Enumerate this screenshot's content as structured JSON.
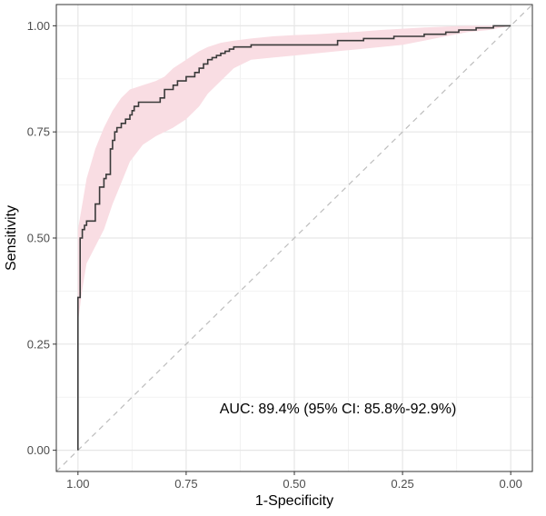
{
  "chart_data": {
    "type": "line",
    "title": "",
    "xlabel": "1-Specificity",
    "ylabel": "Sensitivity",
    "x_reversed": true,
    "xlim": [
      1.05,
      -0.05
    ],
    "ylim": [
      -0.05,
      1.05
    ],
    "x_ticks": [
      1.0,
      0.75,
      0.5,
      0.25,
      0.0
    ],
    "x_tick_labels": [
      "1.00",
      "0.75",
      "0.50",
      "0.25",
      "0.00"
    ],
    "y_ticks": [
      0.0,
      0.25,
      0.5,
      0.75,
      1.0
    ],
    "y_tick_labels": [
      "0.00",
      "0.25",
      "0.50",
      "0.75",
      "1.00"
    ],
    "grid": true,
    "annotation": "AUC: 89.4% (95% CI: 85.8%-92.9%)",
    "colors": {
      "line": "#3a3a3a",
      "band": "#f9dde3",
      "diagonal": "#bdbdbd",
      "grid_major": "#e6e6e6",
      "grid_minor": "#f2f2f2",
      "border": "#333333"
    },
    "roc_curve": {
      "x": [
        1.0,
        1.0,
        0.995,
        0.995,
        0.99,
        0.99,
        0.985,
        0.985,
        0.98,
        0.98,
        0.96,
        0.96,
        0.95,
        0.95,
        0.94,
        0.94,
        0.935,
        0.935,
        0.925,
        0.925,
        0.92,
        0.92,
        0.915,
        0.915,
        0.91,
        0.91,
        0.9,
        0.9,
        0.89,
        0.89,
        0.88,
        0.88,
        0.875,
        0.875,
        0.87,
        0.87,
        0.86,
        0.86,
        0.84,
        0.84,
        0.81,
        0.81,
        0.8,
        0.8,
        0.78,
        0.78,
        0.77,
        0.77,
        0.75,
        0.75,
        0.73,
        0.73,
        0.72,
        0.72,
        0.71,
        0.71,
        0.7,
        0.7,
        0.69,
        0.69,
        0.68,
        0.68,
        0.67,
        0.67,
        0.66,
        0.66,
        0.65,
        0.65,
        0.64,
        0.64,
        0.62,
        0.62,
        0.6,
        0.6,
        0.4,
        0.4,
        0.34,
        0.34,
        0.27,
        0.27,
        0.2,
        0.2,
        0.15,
        0.15,
        0.12,
        0.12,
        0.08,
        0.08,
        0.04,
        0.04,
        0.0
      ],
      "y": [
        0.0,
        0.36,
        0.36,
        0.5,
        0.5,
        0.52,
        0.52,
        0.53,
        0.53,
        0.54,
        0.54,
        0.58,
        0.58,
        0.62,
        0.62,
        0.64,
        0.64,
        0.65,
        0.65,
        0.71,
        0.71,
        0.73,
        0.73,
        0.75,
        0.75,
        0.76,
        0.76,
        0.77,
        0.77,
        0.78,
        0.78,
        0.79,
        0.79,
        0.8,
        0.8,
        0.81,
        0.81,
        0.82,
        0.82,
        0.82,
        0.82,
        0.83,
        0.83,
        0.85,
        0.85,
        0.86,
        0.86,
        0.87,
        0.87,
        0.88,
        0.88,
        0.89,
        0.89,
        0.9,
        0.9,
        0.91,
        0.91,
        0.92,
        0.92,
        0.925,
        0.925,
        0.93,
        0.93,
        0.935,
        0.935,
        0.94,
        0.94,
        0.945,
        0.945,
        0.95,
        0.95,
        0.95,
        0.95,
        0.955,
        0.955,
        0.965,
        0.965,
        0.97,
        0.97,
        0.975,
        0.975,
        0.98,
        0.98,
        0.985,
        0.985,
        0.99,
        0.99,
        0.995,
        0.995,
        1.0,
        1.0
      ]
    },
    "ci_band": {
      "x": [
        1.0,
        0.99,
        0.98,
        0.96,
        0.94,
        0.92,
        0.9,
        0.88,
        0.85,
        0.82,
        0.8,
        0.78,
        0.75,
        0.72,
        0.7,
        0.67,
        0.64,
        0.6,
        0.55,
        0.5,
        0.45,
        0.4,
        0.35,
        0.3,
        0.25,
        0.2,
        0.15,
        0.1,
        0.05,
        0.0
      ],
      "upper": [
        0.52,
        0.58,
        0.64,
        0.71,
        0.76,
        0.8,
        0.83,
        0.85,
        0.86,
        0.87,
        0.88,
        0.9,
        0.92,
        0.94,
        0.95,
        0.96,
        0.965,
        0.97,
        0.975,
        0.978,
        0.98,
        0.983,
        0.986,
        0.99,
        0.993,
        0.996,
        0.998,
        1.0,
        1.0,
        1.0
      ],
      "lower": [
        0.3,
        0.38,
        0.44,
        0.48,
        0.52,
        0.58,
        0.63,
        0.68,
        0.72,
        0.74,
        0.75,
        0.76,
        0.78,
        0.81,
        0.84,
        0.87,
        0.9,
        0.92,
        0.925,
        0.93,
        0.935,
        0.94,
        0.945,
        0.95,
        0.955,
        0.965,
        0.975,
        0.985,
        0.99,
        1.0
      ]
    }
  }
}
